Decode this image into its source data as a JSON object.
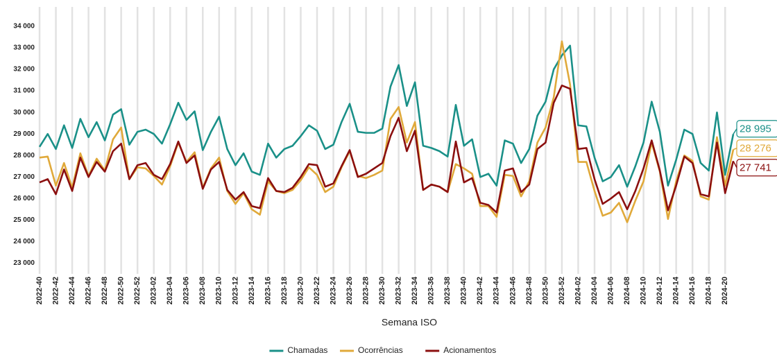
{
  "chart_data": {
    "type": "line",
    "x_label": "Semana ISO",
    "categories": [
      "2022-40",
      null,
      "2022-42",
      null,
      "2022-44",
      null,
      "2022-46",
      null,
      "2022-48",
      null,
      "2022-50",
      null,
      "2022-52",
      null,
      "2023-02",
      null,
      "2023-04",
      null,
      "2023-06",
      null,
      "2023-08",
      null,
      "2023-10",
      null,
      "2023-12",
      null,
      "2023-14",
      null,
      "2023-16",
      null,
      "2023-18",
      null,
      "2023-20",
      null,
      "2023-22",
      null,
      "2023-24",
      null,
      "2023-26",
      null,
      "2023-28",
      null,
      "2023-30",
      null,
      "2023-32",
      null,
      "2023-34",
      null,
      "2023-36",
      null,
      "2023-38",
      null,
      "2023-40",
      null,
      "2023-42",
      null,
      "2023-44",
      null,
      "2023-46",
      null,
      "2023-48",
      null,
      "2023-50",
      null,
      "2023-52",
      null,
      "2024-02",
      null,
      "2024-04",
      null,
      "2024-06",
      null,
      "2024-08",
      null,
      "2024-10",
      null,
      "2024-12",
      null,
      "2024-14",
      null,
      "2024-16",
      null,
      "2024-18",
      null,
      "2024-20",
      null
    ],
    "series": [
      {
        "name": "Chamadas",
        "color": "#1a9088",
        "values": [
          28400,
          29000,
          28300,
          29400,
          28350,
          29700,
          28850,
          29550,
          28700,
          29900,
          30150,
          28500,
          29100,
          29200,
          29000,
          28550,
          29450,
          30450,
          29650,
          30050,
          28250,
          29100,
          29800,
          28300,
          27550,
          28100,
          27250,
          27100,
          28550,
          27900,
          28300,
          28450,
          28900,
          29400,
          29150,
          28300,
          28500,
          29550,
          30400,
          29100,
          29050,
          29050,
          29250,
          31200,
          32200,
          30300,
          31400,
          28450,
          28350,
          28200,
          27950,
          30350,
          28450,
          28750,
          27000,
          27150,
          26600,
          28700,
          28550,
          27650,
          28300,
          29850,
          30500,
          32000,
          32650,
          33100,
          29400,
          29350,
          27900,
          26800,
          27000,
          27550,
          26550,
          27500,
          28600,
          30500,
          29100,
          26600,
          27800,
          29200,
          29000,
          27650,
          27300,
          30000,
          27100,
          28995
        ],
        "value_labels": [
          null,
          null,
          null,
          null,
          null,
          null,
          null,
          null,
          null,
          null,
          null,
          null,
          null,
          null,
          null,
          null,
          null,
          null,
          null,
          null,
          null,
          null,
          null,
          null,
          null,
          null,
          null,
          null,
          null,
          null,
          null,
          null,
          null,
          null,
          null,
          null,
          null,
          null,
          null,
          null,
          null,
          null,
          null,
          null,
          null,
          null,
          null,
          null,
          null,
          null,
          null,
          null,
          null,
          null,
          null,
          null,
          null,
          null,
          null,
          null,
          null,
          null,
          null,
          null,
          null,
          null,
          null,
          null,
          null,
          null,
          null,
          null,
          null,
          null,
          null,
          null,
          null,
          null,
          null,
          null,
          null,
          null,
          null,
          null,
          null,
          "28 995"
        ]
      },
      {
        "name": "Ocorrências",
        "color": "#e0a93a",
        "values": [
          27900,
          27950,
          26600,
          27650,
          26500,
          28100,
          27050,
          27850,
          27300,
          28750,
          29300,
          26900,
          27450,
          27400,
          27050,
          26650,
          27500,
          28600,
          27700,
          28150,
          26500,
          27400,
          27900,
          26350,
          25750,
          26250,
          25500,
          25250,
          26800,
          26350,
          26250,
          26400,
          26850,
          27450,
          27100,
          26300,
          26550,
          27450,
          28200,
          27050,
          26950,
          27100,
          27300,
          29700,
          30250,
          28600,
          29550,
          26400,
          26650,
          26550,
          26300,
          27600,
          27400,
          27150,
          25650,
          25650,
          25150,
          27100,
          27050,
          26100,
          26800,
          28600,
          29300,
          30700,
          33300,
          31300,
          27700,
          27700,
          26350,
          25200,
          25350,
          25800,
          24900,
          25900,
          26800,
          28600,
          27250,
          25050,
          26800,
          28000,
          27750,
          26100,
          25950,
          28850,
          26600,
          28276
        ],
        "value_labels": [
          null,
          null,
          null,
          null,
          null,
          null,
          null,
          null,
          null,
          null,
          null,
          null,
          null,
          null,
          null,
          null,
          null,
          null,
          null,
          null,
          null,
          null,
          null,
          null,
          null,
          null,
          null,
          null,
          null,
          null,
          null,
          null,
          null,
          null,
          null,
          null,
          null,
          null,
          null,
          null,
          null,
          null,
          null,
          null,
          null,
          null,
          null,
          null,
          null,
          null,
          null,
          null,
          null,
          null,
          null,
          null,
          null,
          null,
          null,
          null,
          null,
          null,
          null,
          null,
          null,
          null,
          null,
          null,
          null,
          null,
          null,
          null,
          null,
          null,
          null,
          null,
          null,
          null,
          null,
          null,
          null,
          null,
          null,
          null,
          null,
          "28 276"
        ]
      },
      {
        "name": "Acionamentos",
        "color": "#8b0f0f",
        "values": [
          26750,
          26900,
          26200,
          27350,
          26350,
          27900,
          27000,
          27700,
          27250,
          28200,
          28550,
          26900,
          27550,
          27650,
          27100,
          26900,
          27600,
          28650,
          27650,
          28000,
          26450,
          27350,
          27700,
          26400,
          25950,
          26300,
          25650,
          25550,
          26950,
          26350,
          26300,
          26500,
          27000,
          27600,
          27550,
          26550,
          26700,
          27500,
          28250,
          27000,
          27150,
          27400,
          27650,
          28900,
          29750,
          28200,
          29150,
          26400,
          26650,
          26550,
          26300,
          28650,
          26750,
          26950,
          25800,
          25700,
          25350,
          27300,
          27400,
          26300,
          26650,
          28300,
          28600,
          30450,
          31250,
          31100,
          28300,
          28350,
          26900,
          25750,
          26000,
          26300,
          25500,
          26350,
          27400,
          28700,
          27300,
          25450,
          26600,
          27950,
          27650,
          26200,
          26100,
          28600,
          26250,
          27741
        ],
        "value_labels": [
          null,
          null,
          null,
          null,
          null,
          null,
          null,
          null,
          null,
          null,
          null,
          null,
          null,
          null,
          null,
          null,
          null,
          null,
          null,
          null,
          null,
          null,
          null,
          null,
          null,
          null,
          null,
          null,
          null,
          null,
          null,
          null,
          null,
          null,
          null,
          null,
          null,
          null,
          null,
          null,
          null,
          null,
          null,
          null,
          null,
          null,
          null,
          null,
          null,
          null,
          null,
          null,
          null,
          null,
          null,
          null,
          null,
          null,
          null,
          null,
          null,
          null,
          null,
          null,
          null,
          null,
          null,
          null,
          null,
          null,
          null,
          null,
          null,
          null,
          null,
          null,
          null,
          null,
          null,
          null,
          null,
          null,
          null,
          null,
          null,
          "27 741"
        ]
      }
    ],
    "ylim": [
      22500,
      34900
    ],
    "yticks": [
      {
        "value": 23000,
        "label": "23 000"
      },
      {
        "value": 24000,
        "label": "24 000"
      },
      {
        "value": 25000,
        "label": "25 000"
      },
      {
        "value": 26000,
        "label": "26 000"
      },
      {
        "value": 27000,
        "label": "27 000"
      },
      {
        "value": 28000,
        "label": "28 000"
      },
      {
        "value": 29000,
        "label": "29 000"
      },
      {
        "value": 30000,
        "label": "30 000"
      },
      {
        "value": 31000,
        "label": "31 000"
      },
      {
        "value": 32000,
        "label": "32 000"
      },
      {
        "value": 33000,
        "label": "33 000"
      },
      {
        "value": 34000,
        "label": "34 000"
      }
    ],
    "grid": true,
    "legend": "bottom"
  }
}
